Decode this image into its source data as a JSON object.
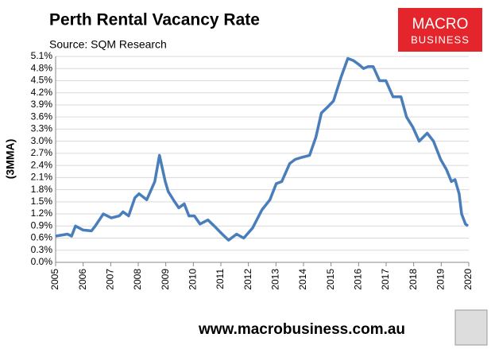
{
  "chart_data": {
    "type": "line",
    "title": "Perth Rental Vacancy Rate",
    "subtitle": "Source: SQM Research",
    "y_label": "(3MMA)",
    "logo": [
      "MACRO",
      "BUSINESS"
    ],
    "footer": "www.macrobusiness.com.au",
    "xlim": [
      2005,
      2020
    ],
    "xticks": [
      2005,
      2006,
      2007,
      2008,
      2009,
      2010,
      2011,
      2012,
      2013,
      2014,
      2015,
      2016,
      2017,
      2018,
      2019,
      2020
    ],
    "ylim": [
      0,
      5.1
    ],
    "yticks": [
      {
        "value": 0,
        "label": "0.0%"
      },
      {
        "value": 0.3,
        "label": "0.3%"
      },
      {
        "value": 0.6,
        "label": "0.6%"
      },
      {
        "value": 0.9,
        "label": "0.9%"
      },
      {
        "value": 1.2,
        "label": "1.2%"
      },
      {
        "value": 1.5,
        "label": "1.5%"
      },
      {
        "value": 1.8,
        "label": "1.8%"
      },
      {
        "value": 2.1,
        "label": "2.1%"
      },
      {
        "value": 2.4,
        "label": "2.4%"
      },
      {
        "value": 2.7,
        "label": "2.7%"
      },
      {
        "value": 3.0,
        "label": "3.0%"
      },
      {
        "value": 3.3,
        "label": "3.3%"
      },
      {
        "value": 3.6,
        "label": "3.6%"
      },
      {
        "value": 3.9,
        "label": "3.9%"
      },
      {
        "value": 4.2,
        "label": "4.2%"
      },
      {
        "value": 4.5,
        "label": "4.5%"
      },
      {
        "value": 4.8,
        "label": "4.8%"
      },
      {
        "value": 5.1,
        "label": "5.1%"
      }
    ],
    "grid": true,
    "color": "#4a7ebb",
    "x": [
      2005.0,
      2005.43,
      2005.58,
      2005.72,
      2006.0,
      2006.3,
      2006.44,
      2006.73,
      2007.02,
      2007.31,
      2007.45,
      2007.65,
      2007.88,
      2008.03,
      2008.31,
      2008.6,
      2008.77,
      2008.98,
      2009.09,
      2009.32,
      2009.47,
      2009.67,
      2009.84,
      2010.04,
      2010.24,
      2010.53,
      2010.76,
      2011.05,
      2011.28,
      2011.57,
      2011.83,
      2012.15,
      2012.49,
      2012.78,
      2013.01,
      2013.21,
      2013.5,
      2013.7,
      2013.93,
      2014.22,
      2014.45,
      2014.65,
      2014.88,
      2015.09,
      2015.37,
      2015.61,
      2015.81,
      2016.01,
      2016.18,
      2016.35,
      2016.53,
      2016.76,
      2016.99,
      2017.25,
      2017.54,
      2017.74,
      2017.97,
      2018.2,
      2018.49,
      2018.72,
      2018.98,
      2019.19,
      2019.37,
      2019.5,
      2019.65,
      2019.74,
      2019.88,
      2019.97
    ],
    "values": [
      0.65,
      0.7,
      0.65,
      0.9,
      0.8,
      0.78,
      0.9,
      1.2,
      1.1,
      1.15,
      1.25,
      1.15,
      1.6,
      1.7,
      1.55,
      2.0,
      2.65,
      2.0,
      1.75,
      1.5,
      1.35,
      1.45,
      1.15,
      1.15,
      0.95,
      1.05,
      0.9,
      0.7,
      0.55,
      0.7,
      0.6,
      0.85,
      1.3,
      1.55,
      1.95,
      2.0,
      2.45,
      2.55,
      2.6,
      2.65,
      3.1,
      3.7,
      3.85,
      4.0,
      4.6,
      5.05,
      5.0,
      4.9,
      4.8,
      4.85,
      4.85,
      4.5,
      4.5,
      4.1,
      4.1,
      3.6,
      3.35,
      3.0,
      3.2,
      3.0,
      2.55,
      2.3,
      2.0,
      2.05,
      1.7,
      1.2,
      0.95,
      0.9
    ]
  }
}
